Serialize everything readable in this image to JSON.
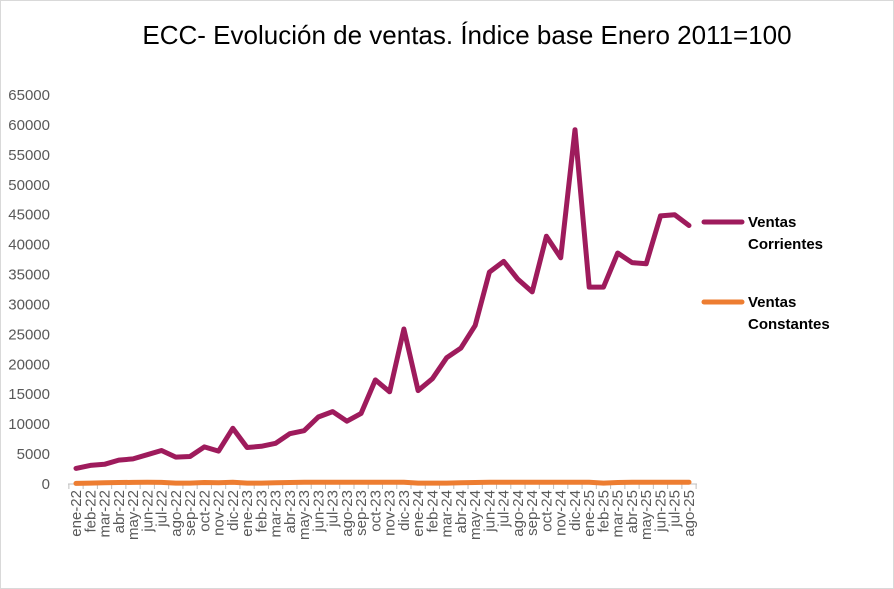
{
  "chart_data": {
    "type": "line",
    "title": "ECC- Evolución de ventas. Índice base Enero 2011=100",
    "xlabel": "",
    "ylabel": "",
    "ylim": [
      0,
      65000
    ],
    "yticks": [
      0,
      5000,
      10000,
      15000,
      20000,
      25000,
      30000,
      35000,
      40000,
      45000,
      50000,
      55000,
      60000,
      65000
    ],
    "grid": false,
    "legend_position": "right",
    "categories": [
      "ene-22",
      "feb-22",
      "mar-22",
      "abr-22",
      "may-22",
      "jun-22",
      "jul-22",
      "ago-22",
      "sep-22",
      "oct-22",
      "nov-22",
      "dic-22",
      "ene-23",
      "feb-23",
      "mar-23",
      "abr-23",
      "may-23",
      "jun-23",
      "jul-23",
      "ago-23",
      "sep-23",
      "oct-23",
      "nov-23",
      "dic-23",
      "ene-24",
      "feb-24",
      "mar-24",
      "abr-24",
      "may-24",
      "jun-24",
      "jul-24",
      "ago-24",
      "sep-24",
      "oct-24",
      "nov-24",
      "dic-24",
      "ene-25",
      "feb-25",
      "mar-25",
      "abr-25",
      "may-25",
      "jun-25",
      "jul-25",
      "ago-25"
    ],
    "series": [
      {
        "name": "Ventas Corrientes",
        "legend_lines": [
          "Ventas",
          "Corrientes"
        ],
        "color": "#9e1b5c",
        "values": [
          2600,
          3100,
          3300,
          4000,
          4200,
          4900,
          5600,
          4500,
          4600,
          6200,
          5500,
          9300,
          6100,
          6300,
          6800,
          8400,
          8900,
          11200,
          12100,
          10500,
          11800,
          17400,
          15400,
          25900,
          15600,
          17600,
          21100,
          22700,
          26500,
          35400,
          37200,
          34200,
          32100,
          41400,
          37800,
          59200,
          32900,
          32900,
          38600,
          37000,
          36800,
          44800,
          45000,
          43200
        ]
      },
      {
        "name": "Ventas Constantes",
        "legend_lines": [
          "Ventas",
          "Constantes"
        ],
        "color": "#ed7d31",
        "values": [
          100,
          150,
          200,
          250,
          260,
          280,
          260,
          150,
          150,
          250,
          200,
          300,
          150,
          150,
          200,
          250,
          300,
          300,
          300,
          280,
          280,
          300,
          280,
          300,
          150,
          150,
          150,
          200,
          250,
          300,
          300,
          300,
          300,
          300,
          300,
          300,
          300,
          150,
          250,
          280,
          280,
          300,
          300,
          300
        ]
      }
    ]
  }
}
